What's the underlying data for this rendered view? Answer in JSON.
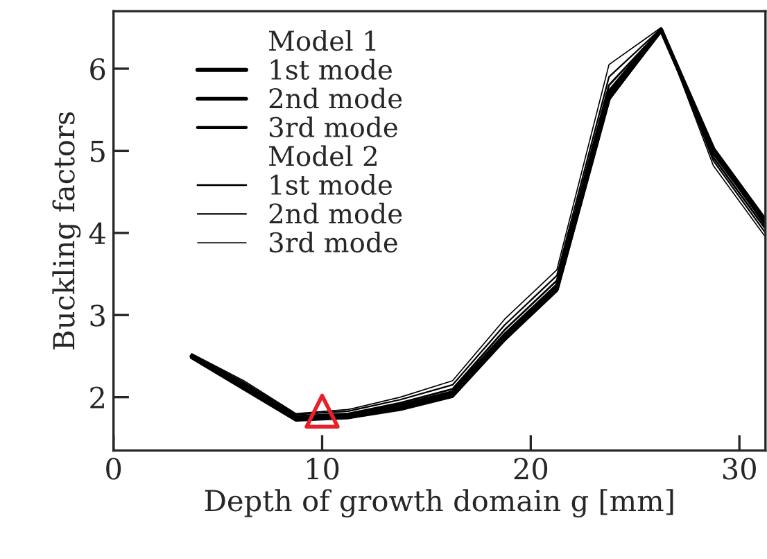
{
  "chart_data": {
    "type": "line",
    "xlabel": "Depth of growth domain g [mm]",
    "ylabel": "Buckling factors",
    "x": [
      3.75,
      6.25,
      8.75,
      11.25,
      13.75,
      16.25,
      18.75,
      21.25,
      23.75,
      26.25,
      28.75,
      31.25
    ],
    "series": [
      {
        "name": "1st mode",
        "color": "#000000",
        "values": [
          2.5,
          2.12,
          1.74,
          1.76,
          1.87,
          2.03,
          2.72,
          3.32,
          5.65,
          6.47,
          5.02,
          4.15
        ]
      },
      {
        "name": "2nd mode",
        "color": "#000000",
        "values": [
          2.49,
          2.14,
          1.75,
          1.78,
          1.9,
          2.06,
          2.76,
          3.36,
          5.72,
          6.48,
          4.98,
          4.12
        ]
      },
      {
        "name": "3rd mode",
        "color": "#000000",
        "values": [
          2.48,
          2.1,
          1.72,
          1.75,
          1.85,
          2.01,
          2.7,
          3.3,
          5.63,
          6.47,
          5.0,
          4.1
        ]
      },
      {
        "name": "1st mode",
        "color": "#000000",
        "values": [
          2.51,
          2.16,
          1.77,
          1.8,
          1.93,
          2.1,
          2.82,
          3.42,
          5.8,
          6.48,
          4.92,
          4.05
        ]
      },
      {
        "name": "2nd mode",
        "color": "#000000",
        "values": [
          2.52,
          2.18,
          1.79,
          1.83,
          1.97,
          2.15,
          2.88,
          3.48,
          5.9,
          6.49,
          4.88,
          4.0
        ]
      },
      {
        "name": "3rd mode",
        "color": "#000000",
        "values": [
          2.53,
          2.2,
          1.8,
          1.85,
          2.0,
          2.2,
          2.95,
          3.55,
          6.05,
          6.5,
          4.82,
          3.95
        ]
      },
      {
        "type": "scatter",
        "color": "#e8202a",
        "x": [
          10
        ],
        "values": [
          1.83
        ],
        "marker": "triangle"
      }
    ],
    "annotations": [
      "Model 1",
      "Model 2"
    ],
    "xlim": [
      0,
      31.25
    ],
    "ylim": [
      1.35,
      6.7
    ],
    "xticks": [
      0,
      10,
      20,
      30
    ],
    "yticks": [
      2,
      3,
      4,
      5,
      6
    ],
    "grid": false,
    "legend": "top left"
  }
}
